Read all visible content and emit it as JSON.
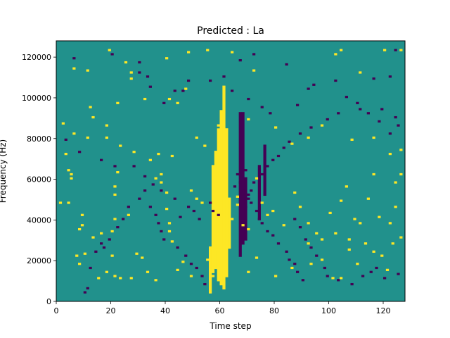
{
  "chart_data": {
    "type": "heatmap",
    "title": "Predicted : La",
    "xlabel": "Time step",
    "ylabel": "Frequency (Hz)",
    "xlim": [
      0,
      128
    ],
    "ylim": [
      0,
      128000
    ],
    "xticks": [
      0,
      20,
      40,
      60,
      80,
      100,
      120
    ],
    "yticks": [
      0,
      20000,
      40000,
      60000,
      80000,
      100000,
      120000
    ],
    "xtick_labels": [
      "0",
      "20",
      "40",
      "60",
      "80",
      "100",
      "120"
    ],
    "ytick_labels": [
      "0",
      "20000",
      "40000",
      "60000",
      "80000",
      "100000",
      "120000"
    ],
    "grid": false,
    "colormap": "viridis",
    "value_levels": [
      -1,
      0,
      1
    ],
    "level_colors": {
      "-1": "#440154",
      "0": "#21918c",
      "1": "#fde725"
    },
    "background_level": 0,
    "grid_shape": {
      "time_steps": 128,
      "frequency_bins": 128
    },
    "frequency_bin_hz": 1000,
    "cells": {
      "high": [
        [
          19,
          123
        ],
        [
          25,
          117
        ],
        [
          11,
          113
        ],
        [
          6,
          114
        ],
        [
          27,
          109
        ],
        [
          40,
          119
        ],
        [
          48,
          122
        ],
        [
          55,
          123
        ],
        [
          47,
          104
        ],
        [
          41,
          99
        ],
        [
          32,
          99
        ],
        [
          44,
          97
        ],
        [
          64,
          122
        ],
        [
          72,
          113
        ],
        [
          102,
          121
        ],
        [
          104,
          123
        ],
        [
          111,
          112
        ],
        [
          120,
          123
        ],
        [
          126,
          123
        ],
        [
          12,
          95
        ],
        [
          22,
          97
        ],
        [
          27,
          112
        ],
        [
          13,
          90
        ],
        [
          18,
          86
        ],
        [
          2,
          87
        ],
        [
          6,
          82
        ],
        [
          11,
          80
        ],
        [
          18,
          80
        ],
        [
          28,
          73
        ],
        [
          37,
          72
        ],
        [
          42,
          71
        ],
        [
          51,
          80
        ],
        [
          54,
          76
        ],
        [
          59,
          86
        ],
        [
          62,
          84
        ],
        [
          70,
          89
        ],
        [
          80,
          85
        ],
        [
          86,
          77
        ],
        [
          92,
          80
        ],
        [
          97,
          86
        ],
        [
          108,
          79
        ],
        [
          116,
          80
        ],
        [
          122,
          72
        ],
        [
          126,
          74
        ],
        [
          3,
          72
        ],
        [
          4,
          64
        ],
        [
          4,
          48
        ],
        [
          5,
          60
        ],
        [
          5,
          62
        ],
        [
          1,
          48
        ],
        [
          8,
          35
        ],
        [
          9,
          37
        ],
        [
          9,
          42
        ],
        [
          13,
          31
        ],
        [
          16,
          33
        ],
        [
          20,
          34
        ],
        [
          21,
          40
        ],
        [
          26,
          42
        ],
        [
          21,
          52
        ],
        [
          21,
          56
        ],
        [
          22,
          63
        ],
        [
          23,
          76
        ],
        [
          34,
          69
        ],
        [
          36,
          60
        ],
        [
          38,
          62
        ],
        [
          38,
          58
        ],
        [
          40,
          53
        ],
        [
          40,
          45
        ],
        [
          41,
          38
        ],
        [
          41,
          34
        ],
        [
          42,
          29
        ],
        [
          49,
          54
        ],
        [
          51,
          50
        ],
        [
          53,
          48
        ],
        [
          58,
          53
        ],
        [
          60,
          58
        ],
        [
          64,
          40
        ],
        [
          66,
          51
        ],
        [
          66,
          47
        ],
        [
          68,
          37
        ],
        [
          70,
          35
        ],
        [
          73,
          60
        ],
        [
          75,
          48
        ],
        [
          77,
          42
        ],
        [
          79,
          44
        ],
        [
          83,
          37
        ],
        [
          87,
          53
        ],
        [
          89,
          46
        ],
        [
          92,
          38
        ],
        [
          95,
          33
        ],
        [
          97,
          30
        ],
        [
          100,
          43
        ],
        [
          102,
          33
        ],
        [
          104,
          49
        ],
        [
          106,
          56
        ],
        [
          107,
          30
        ],
        [
          109,
          40
        ],
        [
          111,
          38
        ],
        [
          114,
          50
        ],
        [
          116,
          62
        ],
        [
          118,
          41
        ],
        [
          122,
          38
        ],
        [
          124,
          46
        ],
        [
          126,
          62
        ],
        [
          124,
          58
        ],
        [
          7,
          22
        ],
        [
          8,
          18
        ],
        [
          10,
          23
        ],
        [
          15,
          11
        ],
        [
          18,
          14
        ],
        [
          20,
          22
        ],
        [
          21,
          12
        ],
        [
          23,
          11
        ],
        [
          27,
          11
        ],
        [
          29,
          23
        ],
        [
          31,
          21
        ],
        [
          33,
          14
        ],
        [
          36,
          10
        ],
        [
          44,
          15
        ],
        [
          46,
          19
        ],
        [
          49,
          12
        ],
        [
          55,
          20
        ],
        [
          57,
          12
        ],
        [
          59,
          25
        ],
        [
          70,
          14
        ],
        [
          73,
          21
        ],
        [
          80,
          12
        ],
        [
          86,
          16
        ],
        [
          92,
          28
        ],
        [
          93,
          18
        ],
        [
          97,
          20
        ],
        [
          101,
          11
        ],
        [
          104,
          11
        ],
        [
          107,
          25
        ],
        [
          110,
          18
        ],
        [
          113,
          28
        ],
        [
          116,
          24
        ],
        [
          119,
          22
        ],
        [
          121,
          15
        ],
        [
          123,
          28
        ],
        [
          126,
          31
        ]
      ],
      "low": [
        [
          6,
          119
        ],
        [
          20,
          121
        ],
        [
          30,
          117
        ],
        [
          46,
          103
        ],
        [
          56,
          108
        ],
        [
          67,
          118
        ],
        [
          72,
          121
        ],
        [
          84,
          116
        ],
        [
          92,
          104
        ],
        [
          102,
          108
        ],
        [
          116,
          109
        ],
        [
          122,
          110
        ],
        [
          124,
          123
        ],
        [
          94,
          106
        ],
        [
          30,
          112
        ],
        [
          33,
          110
        ],
        [
          34,
          105
        ],
        [
          43,
          103
        ],
        [
          39,
          97
        ],
        [
          48,
          108
        ],
        [
          61,
          110
        ],
        [
          64,
          103
        ],
        [
          70,
          99
        ],
        [
          75,
          95
        ],
        [
          78,
          92
        ],
        [
          88,
          96
        ],
        [
          106,
          100
        ],
        [
          111,
          94
        ],
        [
          114,
          92
        ],
        [
          118,
          88
        ],
        [
          122,
          82
        ],
        [
          125,
          86
        ],
        [
          3,
          79
        ],
        [
          8,
          73
        ],
        [
          16,
          69
        ],
        [
          21,
          66
        ],
        [
          28,
          66
        ],
        [
          32,
          61
        ],
        [
          35,
          57
        ],
        [
          38,
          54
        ],
        [
          43,
          50
        ],
        [
          45,
          41
        ],
        [
          48,
          46
        ],
        [
          50,
          44
        ],
        [
          52,
          40
        ],
        [
          56,
          48
        ],
        [
          57,
          44
        ],
        [
          59,
          42
        ],
        [
          65,
          56
        ],
        [
          66,
          62
        ],
        [
          67,
          58
        ],
        [
          68,
          54
        ],
        [
          69,
          64
        ],
        [
          70,
          52
        ],
        [
          71,
          48
        ],
        [
          73,
          44
        ],
        [
          74,
          40
        ],
        [
          75,
          38
        ],
        [
          77,
          34
        ],
        [
          79,
          32
        ],
        [
          81,
          28
        ],
        [
          84,
          24
        ],
        [
          85,
          20
        ],
        [
          87,
          18
        ],
        [
          88,
          14
        ],
        [
          90,
          10
        ],
        [
          87,
          40
        ],
        [
          89,
          36
        ],
        [
          91,
          30
        ],
        [
          93,
          26
        ],
        [
          95,
          22
        ],
        [
          98,
          16
        ],
        [
          99,
          12
        ],
        [
          103,
          10
        ],
        [
          108,
          8
        ],
        [
          112,
          12
        ],
        [
          115,
          14
        ],
        [
          117,
          16
        ],
        [
          120,
          11
        ],
        [
          125,
          13
        ],
        [
          10,
          4
        ],
        [
          11,
          6
        ],
        [
          12,
          16
        ],
        [
          14,
          24
        ],
        [
          16,
          28
        ],
        [
          17,
          26
        ],
        [
          19,
          30
        ],
        [
          22,
          36
        ],
        [
          24,
          40
        ],
        [
          26,
          46
        ],
        [
          30,
          50
        ],
        [
          32,
          54
        ],
        [
          34,
          46
        ],
        [
          36,
          42
        ],
        [
          37,
          38
        ],
        [
          38,
          34
        ],
        [
          39,
          30
        ],
        [
          44,
          26
        ],
        [
          47,
          22
        ],
        [
          49,
          18
        ],
        [
          51,
          16
        ],
        [
          53,
          12
        ],
        [
          54,
          8
        ],
        [
          124,
          90
        ],
        [
          119,
          94
        ],
        [
          110,
          97
        ],
        [
          103,
          92
        ],
        [
          99,
          89
        ],
        [
          93,
          85
        ],
        [
          89,
          82
        ],
        [
          85,
          78
        ],
        [
          83,
          75
        ],
        [
          81,
          71
        ],
        [
          79,
          69
        ],
        [
          77,
          66
        ],
        [
          75,
          62
        ],
        [
          72,
          58
        ],
        [
          71,
          54
        ],
        [
          70,
          50
        ],
        [
          69,
          46
        ]
      ],
      "high_band": [
        {
          "time_step": 56,
          "from": 4,
          "to": 26
        },
        {
          "time_step": 57,
          "from": 14,
          "to": 66
        },
        {
          "time_step": 58,
          "from": 16,
          "to": 73
        },
        {
          "time_step": 59,
          "from": 10,
          "to": 84
        },
        {
          "time_step": 60,
          "from": 8,
          "to": 93
        },
        {
          "time_step": 61,
          "from": 6,
          "to": 105
        },
        {
          "time_step": 62,
          "from": 12,
          "to": 84
        },
        {
          "time_step": 63,
          "from": 26,
          "to": 50
        }
      ],
      "low_band": [
        {
          "time_step": 67,
          "from": 22,
          "to": 92
        },
        {
          "time_step": 68,
          "from": 28,
          "to": 92
        },
        {
          "time_step": 69,
          "from": 30,
          "to": 60
        },
        {
          "time_step": 74,
          "from": 40,
          "to": 66
        },
        {
          "time_step": 76,
          "from": 52,
          "to": 76
        }
      ]
    }
  }
}
